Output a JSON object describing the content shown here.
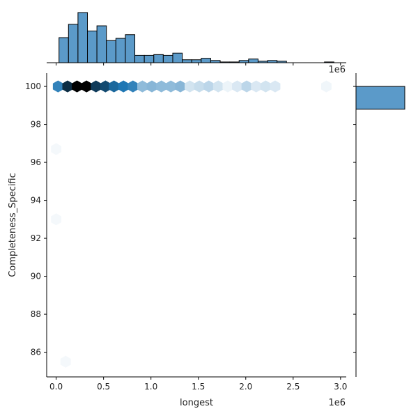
{
  "chart_data": {
    "type": "hexbin-jointplot",
    "xlabel": "longest",
    "ylabel": "Completeness_Specific",
    "x_offset_label": "1e6",
    "x_marginal_offset_label": "1e6",
    "xlim": [
      -0.1,
      3.06
    ],
    "ylim": [
      84.7,
      100.7
    ],
    "x_ticks": [
      {
        "value": 0.0,
        "label": "0.0"
      },
      {
        "value": 0.5,
        "label": "0.5"
      },
      {
        "value": 1.0,
        "label": "1.0"
      },
      {
        "value": 1.5,
        "label": "1.5"
      },
      {
        "value": 2.0,
        "label": "2.0"
      },
      {
        "value": 2.5,
        "label": "2.5"
      },
      {
        "value": 3.0,
        "label": "3.0"
      }
    ],
    "y_ticks": [
      {
        "value": 86,
        "label": "86"
      },
      {
        "value": 88,
        "label": "88"
      },
      {
        "value": 90,
        "label": "90"
      },
      {
        "value": 92,
        "label": "92"
      },
      {
        "value": 94,
        "label": "94"
      },
      {
        "value": 96,
        "label": "96"
      },
      {
        "value": 98,
        "label": "98"
      },
      {
        "value": 100,
        "label": "100"
      }
    ],
    "hexbins": [
      {
        "x": 0.02,
        "y": 100,
        "intensity": 0.55
      },
      {
        "x": 0.12,
        "y": 100,
        "intensity": 0.85
      },
      {
        "x": 0.22,
        "y": 100,
        "intensity": 1.0
      },
      {
        "x": 0.32,
        "y": 100,
        "intensity": 1.0
      },
      {
        "x": 0.42,
        "y": 100,
        "intensity": 0.8
      },
      {
        "x": 0.52,
        "y": 100,
        "intensity": 0.75
      },
      {
        "x": 0.61,
        "y": 100,
        "intensity": 0.65
      },
      {
        "x": 0.71,
        "y": 100,
        "intensity": 0.6
      },
      {
        "x": 0.81,
        "y": 100,
        "intensity": 0.55
      },
      {
        "x": 0.91,
        "y": 100,
        "intensity": 0.3
      },
      {
        "x": 1.01,
        "y": 100,
        "intensity": 0.32
      },
      {
        "x": 1.11,
        "y": 100,
        "intensity": 0.3
      },
      {
        "x": 1.21,
        "y": 100,
        "intensity": 0.3
      },
      {
        "x": 1.31,
        "y": 100,
        "intensity": 0.32
      },
      {
        "x": 1.41,
        "y": 100,
        "intensity": 0.12
      },
      {
        "x": 1.51,
        "y": 100,
        "intensity": 0.15
      },
      {
        "x": 1.61,
        "y": 100,
        "intensity": 0.18
      },
      {
        "x": 1.71,
        "y": 100,
        "intensity": 0.12
      },
      {
        "x": 1.81,
        "y": 100,
        "intensity": 0.05
      },
      {
        "x": 1.91,
        "y": 100,
        "intensity": 0.1
      },
      {
        "x": 2.01,
        "y": 100,
        "intensity": 0.18
      },
      {
        "x": 2.11,
        "y": 100,
        "intensity": 0.1
      },
      {
        "x": 2.21,
        "y": 100,
        "intensity": 0.12
      },
      {
        "x": 2.31,
        "y": 100,
        "intensity": 0.1
      },
      {
        "x": 2.85,
        "y": 100,
        "intensity": 0.04
      },
      {
        "x": 0.0,
        "y": 96.7,
        "intensity": 0.03
      },
      {
        "x": 0.0,
        "y": 93.0,
        "intensity": 0.03
      },
      {
        "x": 0.1,
        "y": 85.5,
        "intensity": 0.03
      }
    ],
    "x_marginal_hist": {
      "bin_width": 0.1,
      "start": 0.03,
      "counts": [
        34,
        52,
        68,
        43,
        50,
        30,
        33,
        38,
        10,
        10,
        11,
        10,
        13,
        4,
        4,
        6,
        3,
        1,
        1,
        3,
        5,
        2,
        3,
        2,
        0,
        0,
        0,
        0,
        1
      ]
    },
    "y_marginal_hist": {
      "bins": [
        {
          "y_start": 98.8,
          "y_end": 100.0,
          "count": 1
        }
      ]
    },
    "colors": {
      "bar": "#5b9ac9",
      "hex_dark": "#000000",
      "hex_mid": "#1f77b4",
      "hex_light": "#ffffff"
    }
  }
}
